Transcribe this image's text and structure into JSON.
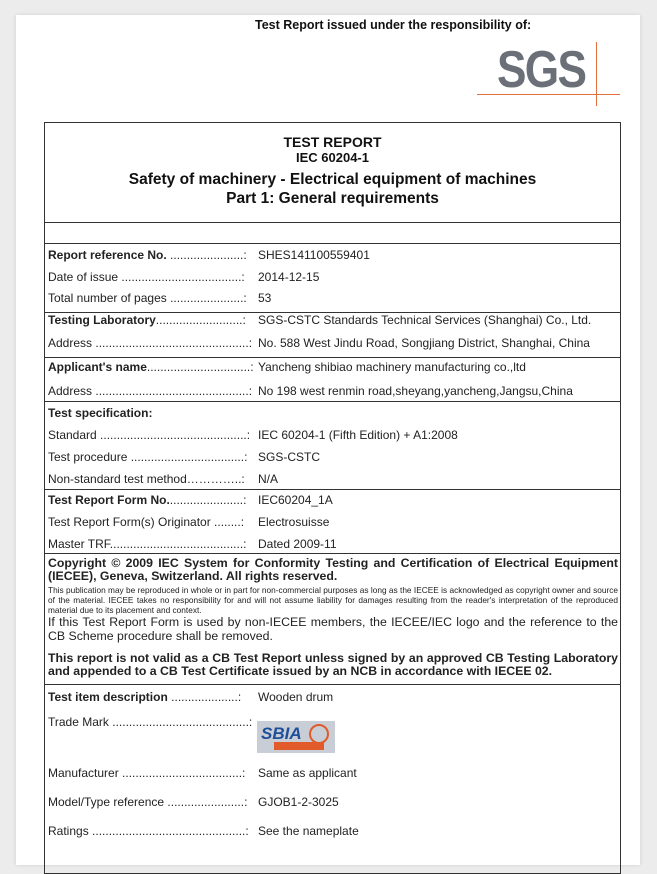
{
  "header": {
    "issued_under": "Test Report issued under the responsibility of:",
    "logo_text": "SGS"
  },
  "title": {
    "line1": "TEST REPORT",
    "line2": "IEC 60204-1",
    "line3": "Safety of machinery - Electrical equipment of machines",
    "line4": "Part 1: General requirements"
  },
  "fields": [
    {
      "label": "Report reference No.",
      "dots": " ......................:",
      "value": "SHES141100559401",
      "bold": true
    },
    {
      "label": "Date of issue",
      "dots": " ....................................:",
      "value": "2014-12-15"
    },
    {
      "label": "Total number of pages",
      "dots": " ......................:",
      "value": "53"
    },
    {
      "label": "Testing Laboratory",
      "dots": "..........................:",
      "value": "SGS-CSTC Standards Technical Services (Shanghai) Co., Ltd.",
      "bold": true
    },
    {
      "label": "Address",
      "dots": " ..............................................:",
      "value": "No. 588 West Jindu Road, Songjiang District, Shanghai, China"
    },
    {
      "label": "Applicant's name",
      "dots": "...............................:",
      "value": "Yancheng shibiao machinery manufacturing co.,ltd",
      "bold": true
    },
    {
      "label": "Address",
      "dots": " ..............................................:",
      "value": "No 198 west renmin road,sheyang,yancheng,Jangsu,China"
    },
    {
      "label": "Test specification:",
      "dots": "",
      "value": "",
      "bold": true
    },
    {
      "label": "Standard",
      "dots": " ............................................:",
      "value": "IEC 60204-1 (Fifth Edition) + A1:2008"
    },
    {
      "label": "Test procedure",
      "dots": " ..................................:",
      "value": "SGS-CSTC"
    },
    {
      "label": "Non-standard test method",
      "dots": "…………..:",
      "value": "N/A"
    },
    {
      "label": "Test Report Form No.",
      "dots": "......................:",
      "value": "IEC60204_1A",
      "bold": true
    },
    {
      "label": "Test Report Form(s) Originator",
      "dots": " ........:",
      "value": "Electrosuisse"
    },
    {
      "label": "Master TRF",
      "dots": "........................................:",
      "value": "Dated 2009-11"
    }
  ],
  "copyright": {
    "bold": "Copyright © 2009 IEC System for Conformity Testing and Certification of Electrical Equipment (IECEE), Geneva, Switzerland. All rights reserved.",
    "small": "This publication may be reproduced in whole or in part for non-commercial purposes as long as the IECEE is acknowledged as copyright owner and source of the material. IECEE takes no responsibility for and will not assume liability for damages resulting from the reader's interpretation of the reproduced material due to its placement and context.",
    "normal": "If this Test Report Form is used by non-IECEE members, the IECEE/IEC logo and the reference to the CB Scheme procedure shall be removed.",
    "validity": "This report is not valid as a CB Test Report unless signed by an approved CB Testing Laboratory and appended to a CB Test Certificate issued by an NCB in accordance with IECEE 02."
  },
  "item_fields": [
    {
      "label": "Test item description",
      "dots": " ....................:",
      "value": "Wooden drum",
      "bold": true
    },
    {
      "label": "Trade Mark",
      "dots": " .........................................:",
      "value": ""
    },
    {
      "label": "Manufacturer",
      "dots": " ....................................:",
      "value": "Same as applicant"
    },
    {
      "label": "Model/Type reference",
      "dots": " .......................:",
      "value": "GJOB1-2-3025"
    },
    {
      "label": "Ratings",
      "dots": " ..............................................:",
      "value": "See the nameplate"
    }
  ],
  "trademark_logo": {
    "text": "SBIA",
    "subtext": "世标机械"
  },
  "colors": {
    "sgs_grey": "#6b7078",
    "sgs_orange": "#e0703c",
    "sbia_blue": "#1d4f9a",
    "sbia_orange": "#e05a2a"
  }
}
